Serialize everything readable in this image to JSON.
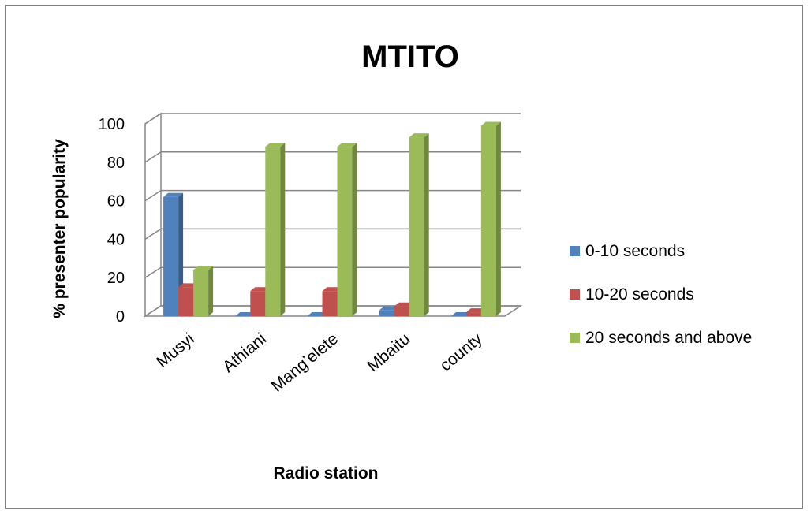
{
  "chart_data": {
    "type": "bar",
    "title": "MTITO",
    "xlabel": "Radio station",
    "ylabel": "% presenter popularity",
    "categories": [
      "Musyi",
      "Athiani",
      "Mang’elete",
      "Mbaitu",
      "county"
    ],
    "ylim": [
      0,
      100
    ],
    "yticks": [
      "0",
      "20",
      "40",
      "60",
      "80",
      "100"
    ],
    "grid": true,
    "legend_position": "right",
    "series": [
      {
        "name": "0-10 seconds",
        "color": "#4F81BD",
        "values": [
          62,
          0,
          0,
          3,
          0
        ]
      },
      {
        "name": "10-20 seconds",
        "color": "#C0504D",
        "values": [
          15,
          13,
          13,
          5,
          2
        ]
      },
      {
        "name": "20 seconds and above",
        "color": "#9BBB59",
        "values": [
          24,
          88,
          88,
          93,
          99
        ]
      }
    ]
  }
}
